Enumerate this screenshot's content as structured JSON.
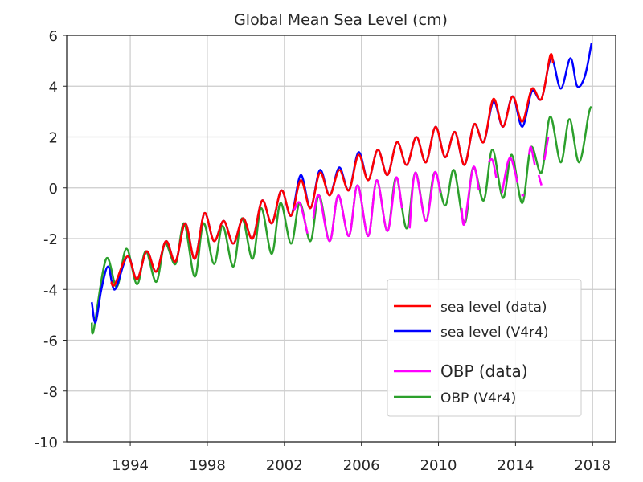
{
  "chart_data": {
    "type": "line",
    "title": "Global Mean Sea Level (cm)",
    "xlabel": "",
    "ylabel": "",
    "xlim": [
      1990.7,
      2019.2
    ],
    "ylim": [
      -10,
      6
    ],
    "grid": true,
    "legend_position": "bottom-right",
    "xticks": [
      "1994",
      "1998",
      "2002",
      "2006",
      "2010",
      "2014",
      "2018"
    ],
    "xtick_values": [
      1994,
      1998,
      2002,
      2006,
      2010,
      2014,
      2018
    ],
    "yticks": [
      "-10",
      "-8",
      "-6",
      "-4",
      "-2",
      "0",
      "2",
      "4",
      "6"
    ],
    "ytick_values": [
      -10,
      -8,
      -6,
      -4,
      -2,
      0,
      2,
      4,
      6
    ],
    "series": [
      {
        "name": "sea level (V4r4)",
        "color": "#0000ff",
        "points": [
          [
            1992.0,
            -4.5
          ],
          [
            1992.2,
            -5.3
          ],
          [
            1992.5,
            -4.0
          ],
          [
            1992.85,
            -3.1
          ],
          [
            1993.2,
            -4.0
          ],
          [
            1993.85,
            -2.7
          ],
          [
            1994.35,
            -3.6
          ],
          [
            1994.85,
            -2.5
          ],
          [
            1995.35,
            -3.3
          ],
          [
            1995.85,
            -2.1
          ],
          [
            1996.35,
            -2.9
          ],
          [
            1996.85,
            -1.4
          ],
          [
            1997.35,
            -2.8
          ],
          [
            1997.85,
            -1.0
          ],
          [
            1998.35,
            -2.1
          ],
          [
            1998.85,
            -1.3
          ],
          [
            1999.35,
            -2.2
          ],
          [
            1999.85,
            -1.2
          ],
          [
            2000.35,
            -2.0
          ],
          [
            2000.85,
            -0.5
          ],
          [
            2001.35,
            -1.4
          ],
          [
            2001.85,
            -0.1
          ],
          [
            2002.35,
            -1.1
          ],
          [
            2002.85,
            0.5
          ],
          [
            2003.35,
            -0.8
          ],
          [
            2003.85,
            0.7
          ],
          [
            2004.35,
            -0.3
          ],
          [
            2004.85,
            0.8
          ],
          [
            2005.35,
            -0.1
          ],
          [
            2005.85,
            1.4
          ],
          [
            2006.35,
            0.3
          ],
          [
            2006.85,
            1.5
          ],
          [
            2007.35,
            0.5
          ],
          [
            2007.85,
            1.8
          ],
          [
            2008.35,
            0.9
          ],
          [
            2008.85,
            2.0
          ],
          [
            2009.35,
            1.0
          ],
          [
            2009.85,
            2.4
          ],
          [
            2010.35,
            1.2
          ],
          [
            2010.85,
            2.2
          ],
          [
            2011.35,
            0.9
          ],
          [
            2011.85,
            2.5
          ],
          [
            2012.35,
            1.8
          ],
          [
            2012.85,
            3.4
          ],
          [
            2013.35,
            2.4
          ],
          [
            2013.85,
            3.6
          ],
          [
            2014.35,
            2.4
          ],
          [
            2014.85,
            3.8
          ],
          [
            2015.35,
            3.5
          ],
          [
            2015.85,
            5.1
          ],
          [
            2016.35,
            3.9
          ],
          [
            2016.85,
            5.1
          ],
          [
            2017.2,
            4.0
          ],
          [
            2017.6,
            4.4
          ],
          [
            2017.95,
            5.7
          ]
        ]
      },
      {
        "name": "sea level (data)",
        "color": "#ff0000",
        "points": [
          [
            1993.0,
            -3.7
          ],
          [
            1993.2,
            -3.8
          ],
          [
            1993.85,
            -2.7
          ],
          [
            1994.35,
            -3.6
          ],
          [
            1994.85,
            -2.5
          ],
          [
            1995.35,
            -3.3
          ],
          [
            1995.85,
            -2.1
          ],
          [
            1996.35,
            -2.9
          ],
          [
            1996.85,
            -1.4
          ],
          [
            1997.35,
            -2.8
          ],
          [
            1997.85,
            -1.0
          ],
          [
            1998.35,
            -2.1
          ],
          [
            1998.85,
            -1.3
          ],
          [
            1999.35,
            -2.2
          ],
          [
            1999.85,
            -1.2
          ],
          [
            2000.35,
            -2.0
          ],
          [
            2000.85,
            -0.5
          ],
          [
            2001.35,
            -1.4
          ],
          [
            2001.85,
            -0.1
          ],
          [
            2002.35,
            -1.1
          ],
          [
            2002.85,
            0.3
          ],
          [
            2003.35,
            -0.8
          ],
          [
            2003.85,
            0.6
          ],
          [
            2004.35,
            -0.3
          ],
          [
            2004.85,
            0.7
          ],
          [
            2005.35,
            -0.1
          ],
          [
            2005.85,
            1.3
          ],
          [
            2006.35,
            0.3
          ],
          [
            2006.85,
            1.5
          ],
          [
            2007.35,
            0.5
          ],
          [
            2007.85,
            1.8
          ],
          [
            2008.35,
            0.9
          ],
          [
            2008.85,
            2.0
          ],
          [
            2009.35,
            1.0
          ],
          [
            2009.85,
            2.4
          ],
          [
            2010.35,
            1.2
          ],
          [
            2010.85,
            2.2
          ],
          [
            2011.35,
            0.9
          ],
          [
            2011.85,
            2.5
          ],
          [
            2012.35,
            1.8
          ],
          [
            2012.85,
            3.5
          ],
          [
            2013.35,
            2.4
          ],
          [
            2013.85,
            3.6
          ],
          [
            2014.35,
            2.6
          ],
          [
            2014.85,
            3.9
          ],
          [
            2015.35,
            3.5
          ],
          [
            2015.8,
            5.2
          ],
          [
            2015.95,
            4.9
          ]
        ]
      },
      {
        "name": "OBP (V4r4)",
        "color": "#2ca02c",
        "points": [
          [
            1992.0,
            -5.3
          ],
          [
            1992.1,
            -5.6
          ],
          [
            1992.75,
            -2.8
          ],
          [
            1993.3,
            -3.9
          ],
          [
            1993.8,
            -2.4
          ],
          [
            1994.35,
            -3.8
          ],
          [
            1994.8,
            -2.5
          ],
          [
            1995.35,
            -3.7
          ],
          [
            1995.8,
            -2.2
          ],
          [
            1996.35,
            -3.0
          ],
          [
            1996.8,
            -1.4
          ],
          [
            1997.35,
            -3.5
          ],
          [
            1997.8,
            -1.4
          ],
          [
            1998.35,
            -3.0
          ],
          [
            1998.8,
            -1.5
          ],
          [
            1999.35,
            -3.1
          ],
          [
            1999.8,
            -1.2
          ],
          [
            2000.35,
            -2.8
          ],
          [
            2000.8,
            -0.8
          ],
          [
            2001.35,
            -2.6
          ],
          [
            2001.8,
            -0.6
          ],
          [
            2002.35,
            -2.2
          ],
          [
            2002.8,
            -0.6
          ],
          [
            2003.35,
            -2.1
          ],
          [
            2003.8,
            -0.3
          ],
          [
            2004.35,
            -2.1
          ],
          [
            2004.8,
            -0.3
          ],
          [
            2005.35,
            -1.9
          ],
          [
            2005.8,
            0.1
          ],
          [
            2006.35,
            -1.9
          ],
          [
            2006.8,
            0.3
          ],
          [
            2007.35,
            -1.7
          ],
          [
            2007.8,
            0.4
          ],
          [
            2008.35,
            -1.6
          ],
          [
            2008.8,
            0.6
          ],
          [
            2009.35,
            -1.3
          ],
          [
            2009.8,
            0.6
          ],
          [
            2010.35,
            -0.7
          ],
          [
            2010.8,
            0.7
          ],
          [
            2011.35,
            -1.4
          ],
          [
            2011.8,
            0.8
          ],
          [
            2012.35,
            -0.5
          ],
          [
            2012.8,
            1.5
          ],
          [
            2013.35,
            -0.4
          ],
          [
            2013.8,
            1.3
          ],
          [
            2014.35,
            -0.6
          ],
          [
            2014.8,
            1.6
          ],
          [
            2015.35,
            0.6
          ],
          [
            2015.8,
            2.8
          ],
          [
            2016.35,
            1.0
          ],
          [
            2016.8,
            2.7
          ],
          [
            2017.3,
            1.0
          ],
          [
            2017.8,
            2.9
          ],
          [
            2017.95,
            3.2
          ]
        ]
      },
      {
        "name": "OBP (data)",
        "color": "#ff00ff",
        "points": [
          [
            2002.5,
            -0.9
          ],
          [
            2002.8,
            -0.6
          ],
          [
            2003.2,
            -1.8
          ],
          null,
          [
            2003.5,
            -1.2
          ],
          [
            2003.8,
            -0.3
          ],
          [
            2004.35,
            -2.1
          ],
          [
            2004.8,
            -0.3
          ],
          [
            2005.35,
            -1.9
          ],
          [
            2005.8,
            0.1
          ],
          [
            2006.35,
            -1.9
          ],
          [
            2006.8,
            0.3
          ],
          [
            2007.35,
            -1.7
          ],
          [
            2007.8,
            0.4
          ],
          [
            2008.1,
            -0.8
          ],
          null,
          [
            2008.5,
            -1.6
          ],
          [
            2008.8,
            0.6
          ],
          [
            2009.35,
            -1.3
          ],
          [
            2009.8,
            0.6
          ],
          [
            2010.1,
            -0.2
          ],
          null,
          [
            2011.2,
            -0.8
          ],
          [
            2011.35,
            -1.4
          ],
          [
            2011.8,
            0.8
          ],
          [
            2012.1,
            -0.1
          ],
          null,
          [
            2012.3,
            -0.8
          ],
          null,
          [
            2012.6,
            1.0
          ],
          [
            2012.8,
            1.1
          ],
          [
            2013.0,
            0.4
          ],
          null,
          [
            2013.3,
            -0.2
          ],
          [
            2013.6,
            1.0
          ],
          [
            2013.8,
            1.1
          ],
          [
            2014.1,
            0.2
          ],
          null,
          [
            2014.3,
            -0.3
          ],
          [
            2014.45,
            -0.3
          ],
          null,
          [
            2014.7,
            1.3
          ],
          [
            2014.8,
            1.6
          ],
          [
            2015.0,
            0.9
          ],
          null,
          [
            2015.2,
            0.5
          ],
          [
            2015.35,
            0.1
          ],
          null,
          [
            2015.5,
            1.1
          ],
          [
            2015.7,
            2.0
          ]
        ]
      }
    ]
  }
}
